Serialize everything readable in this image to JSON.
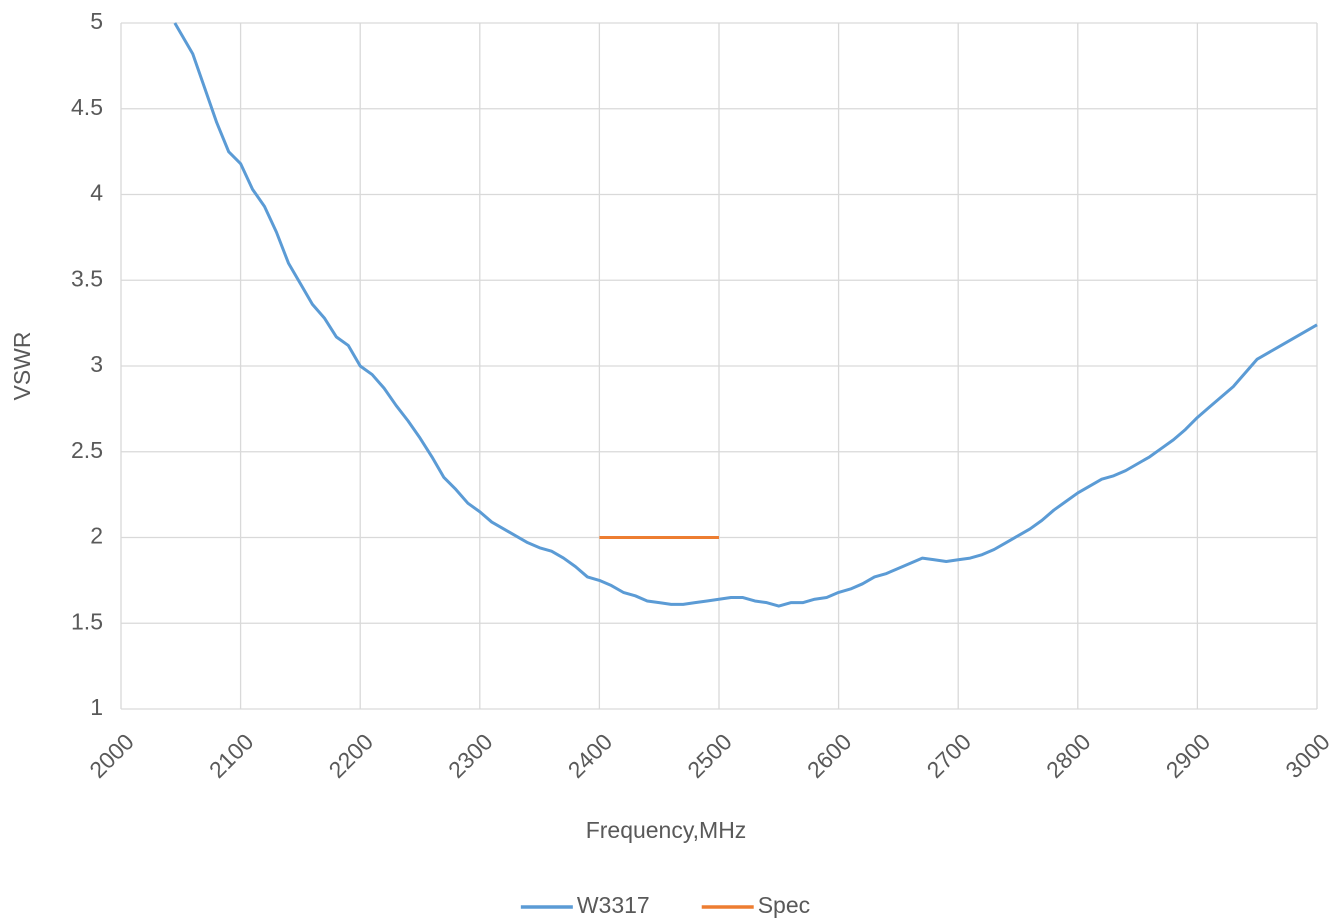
{
  "chart_data": {
    "type": "line",
    "x_label": "Frequency,MHz",
    "y_label": "VSWR",
    "xlim": [
      2000,
      3000
    ],
    "xticks": [
      2000,
      2100,
      2200,
      2300,
      2400,
      2500,
      2600,
      2700,
      2800,
      2900,
      3000
    ],
    "ylim": [
      1,
      5
    ],
    "yticks": [
      1,
      1.5,
      2,
      2.5,
      3,
      3.5,
      4,
      4.5,
      5
    ],
    "grid": true,
    "legend": "bottom",
    "series": [
      {
        "name": "W3317",
        "color": "#5b9bd5",
        "x": [
          2045,
          2060,
          2070,
          2080,
          2090,
          2100,
          2110,
          2120,
          2130,
          2140,
          2150,
          2160,
          2170,
          2180,
          2190,
          2200,
          2210,
          2220,
          2230,
          2240,
          2250,
          2260,
          2270,
          2280,
          2290,
          2300,
          2310,
          2320,
          2330,
          2340,
          2350,
          2360,
          2370,
          2380,
          2390,
          2400,
          2410,
          2420,
          2430,
          2440,
          2450,
          2460,
          2470,
          2480,
          2490,
          2500,
          2510,
          2520,
          2530,
          2540,
          2550,
          2560,
          2570,
          2580,
          2590,
          2600,
          2610,
          2620,
          2630,
          2640,
          2650,
          2660,
          2670,
          2680,
          2690,
          2700,
          2710,
          2720,
          2730,
          2740,
          2750,
          2760,
          2770,
          2780,
          2790,
          2800,
          2810,
          2820,
          2830,
          2840,
          2850,
          2860,
          2870,
          2880,
          2890,
          2900,
          2910,
          2920,
          2930,
          2940,
          2950,
          2960,
          2970,
          2980,
          2990,
          3000
        ],
        "values": [
          5.0,
          4.82,
          4.62,
          4.42,
          4.25,
          4.18,
          4.03,
          3.93,
          3.78,
          3.6,
          3.48,
          3.36,
          3.28,
          3.17,
          3.12,
          3.0,
          2.95,
          2.87,
          2.77,
          2.68,
          2.58,
          2.47,
          2.35,
          2.28,
          2.2,
          2.15,
          2.09,
          2.05,
          2.01,
          1.97,
          1.94,
          1.92,
          1.88,
          1.83,
          1.77,
          1.75,
          1.72,
          1.68,
          1.66,
          1.63,
          1.62,
          1.61,
          1.61,
          1.62,
          1.63,
          1.64,
          1.65,
          1.65,
          1.63,
          1.62,
          1.6,
          1.62,
          1.62,
          1.64,
          1.65,
          1.68,
          1.7,
          1.73,
          1.77,
          1.79,
          1.82,
          1.85,
          1.88,
          1.87,
          1.86,
          1.87,
          1.88,
          1.9,
          1.93,
          1.97,
          2.01,
          2.05,
          2.1,
          2.16,
          2.21,
          2.26,
          2.3,
          2.34,
          2.36,
          2.39,
          2.43,
          2.47,
          2.52,
          2.57,
          2.63,
          2.7,
          2.76,
          2.82,
          2.88,
          2.96,
          3.04,
          3.08,
          3.12,
          3.16,
          3.2,
          3.24
        ]
      },
      {
        "name": "Spec",
        "color": "#ed7d31",
        "x": [
          2400,
          2500
        ],
        "values": [
          2,
          2
        ]
      }
    ]
  }
}
